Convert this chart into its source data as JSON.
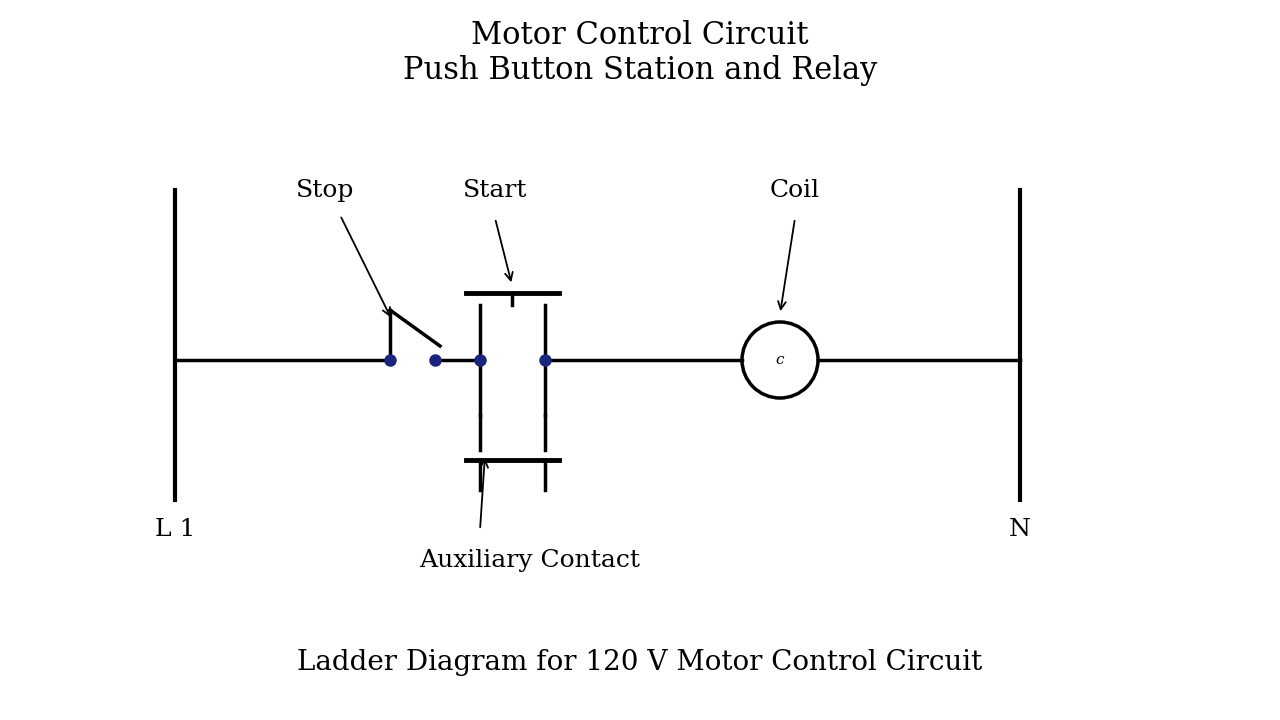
{
  "title_line1": "Motor Control Circuit",
  "title_line2": "Push Button Station and Relay",
  "subtitle": "Ladder Diagram for 120 V Motor Control Circuit",
  "label_L1": "L 1",
  "label_N": "N",
  "label_Stop": "Stop",
  "label_Start": "Start",
  "label_Coil": "Coil",
  "label_Aux": "Auxiliary Contact",
  "label_C": "c",
  "bg_color": "#ffffff",
  "line_color": "#000000",
  "dot_color": "#1a237e",
  "lw_rail": 3.0,
  "lw_wire": 2.5,
  "lw_comp": 2.5,
  "dot_size": 8,
  "figsize": [
    12.8,
    7.2
  ],
  "dpi": 100
}
